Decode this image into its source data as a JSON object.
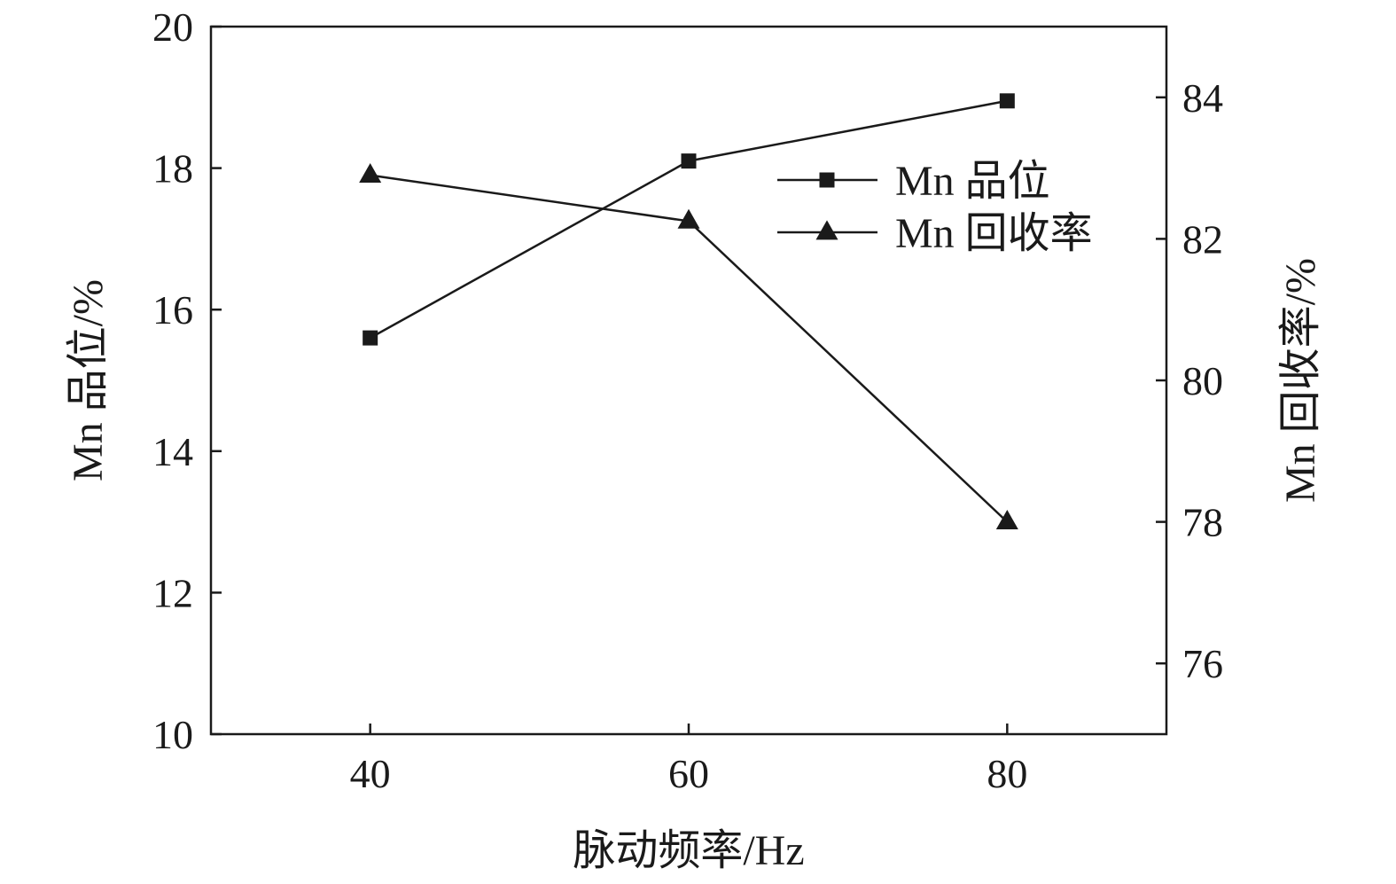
{
  "chart_data": {
    "type": "line",
    "x": [
      40,
      60,
      80
    ],
    "xlabel": "脉动频率/Hz",
    "xlim": [
      30,
      90
    ],
    "xticks": [
      "40",
      "60",
      "80"
    ],
    "ylabel_left": "Mn 品位/%",
    "ylim_left": [
      10,
      20
    ],
    "yticks_left": [
      "10",
      "12",
      "14",
      "16",
      "18",
      "20"
    ],
    "ylabel_right": "Mn 回收率/%",
    "ylim_right": [
      75,
      85
    ],
    "yticks_right": [
      "76",
      "78",
      "80",
      "82",
      "84"
    ],
    "grid": false,
    "legend_position": "top-right",
    "series": [
      {
        "name": "Mn 品位",
        "axis": "left",
        "marker": "square",
        "values": [
          15.6,
          18.1,
          18.95
        ]
      },
      {
        "name": "Mn 回收率",
        "axis": "right",
        "marker": "triangle",
        "values": [
          82.9,
          82.25,
          78.0
        ]
      }
    ],
    "colors": {
      "line": "#1a1a1a",
      "marker": "#1a1a1a"
    }
  }
}
